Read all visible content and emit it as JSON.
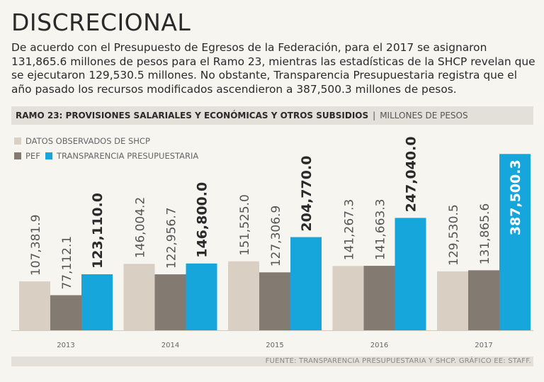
{
  "title": "DISCRECIONAL",
  "intro": "De acuerdo con el Presupuesto de Egresos de la Federación, para el 2017 se asignaron 131,865.6 millones de pesos para el Ramo 23, mientras las estadísticas de la SHCP revelan que se ejecutaron 129,530.5 millones. No obstante, Transparencia Presupuestaria registra que el año pasado los recursos modificados ascendieron a 387,500.3 millones de pesos.",
  "band": {
    "main": "RAMO 23: PROVISIONES SALARIALES Y ECONÓMICAS Y OTROS SUBSIDIOS",
    "sep": "|",
    "unit": "MILLONES DE PESOS"
  },
  "source": "FUENTE: TRANSPARENCIA PRESUPUESTARIA Y SHCP. GRÁFICO EE: STAFF.",
  "colors": {
    "shcp": "#d9cfc2",
    "pef": "#837a72",
    "transparencia": "#16a6dc"
  },
  "chart_data": {
    "type": "bar",
    "title": "RAMO 23: PROVISIONES SALARIALES Y ECONÓMICAS Y OTROS SUBSIDIOS",
    "ylabel": "MILLONES DE PESOS",
    "categories": [
      "2013",
      "2014",
      "2015",
      "2016",
      "2017"
    ],
    "ylim": [
      0,
      430000
    ],
    "series": [
      {
        "name": "DATOS OBSERVADOS DE SHCP",
        "key": "shcp",
        "values": [
          107381.9,
          146004.2,
          151525.0,
          141267.3,
          129530.5
        ],
        "labels": [
          "107,381.9",
          "146,004.2",
          "151,525.0",
          "141,267.3",
          "129,530.5"
        ]
      },
      {
        "name": "PEF",
        "key": "pef",
        "values": [
          77112.1,
          122956.7,
          127306.9,
          141663.3,
          131865.6
        ],
        "labels": [
          "77,112.1",
          "122,956.7",
          "127,306.9",
          "141,663.3",
          "131,865.6"
        ]
      },
      {
        "name": "TRANSPARENCIA PRESUPUESTARIA",
        "key": "transparencia",
        "values": [
          123110.0,
          146800.0,
          204770.0,
          247040.0,
          387500.3
        ],
        "labels": [
          "123,110.0",
          "146,800.0",
          "204,770.0",
          "247,040.0",
          "387,500.3"
        ]
      }
    ]
  }
}
